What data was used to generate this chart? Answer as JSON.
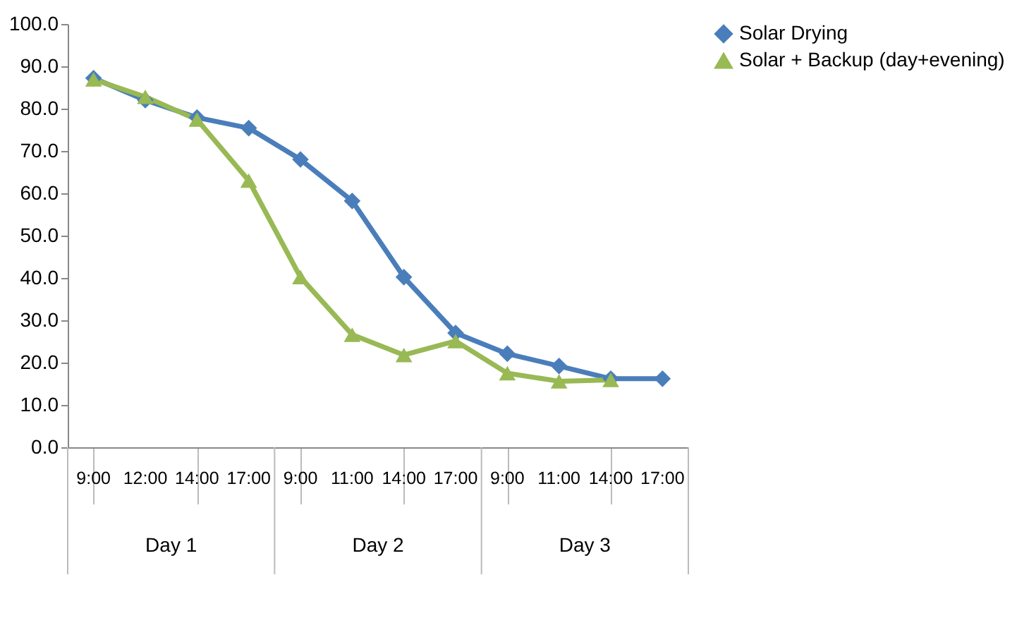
{
  "chart_data": {
    "type": "line",
    "categories": [
      "9:00",
      "12:00",
      "14:00",
      "17:00",
      "9:00",
      "11:00",
      "14:00",
      "17:00",
      "9:00",
      "11:00",
      "14:00",
      "17:00"
    ],
    "series": [
      {
        "name": "Solar Drying",
        "color": "#4a7ebb",
        "marker": "diamond",
        "values": [
          87.2,
          82.0,
          77.9,
          75.4,
          68.0,
          58.2,
          40.2,
          27.0,
          22.1,
          19.2,
          16.2,
          16.2
        ]
      },
      {
        "name": "Solar + Backup (day+evening)",
        "color": "#98b954",
        "marker": "triangle",
        "values": [
          86.9,
          82.8,
          77.4,
          63.0,
          40.2,
          26.6,
          21.8,
          25.1,
          17.5,
          15.6,
          15.9,
          null
        ]
      }
    ],
    "ylim": [
      0,
      100
    ],
    "yticks": [
      {
        "value": 0,
        "label": "0.0"
      },
      {
        "value": 10,
        "label": "10.0"
      },
      {
        "value": 20,
        "label": "20.0"
      },
      {
        "value": 30,
        "label": "30.0"
      },
      {
        "value": 40,
        "label": "40.0"
      },
      {
        "value": 50,
        "label": "50.0"
      },
      {
        "value": 60,
        "label": "60.0"
      },
      {
        "value": 70,
        "label": "70.0"
      },
      {
        "value": 80,
        "label": "80.0"
      },
      {
        "value": 90,
        "label": "90.0"
      },
      {
        "value": 100,
        "label": "100.0"
      }
    ],
    "annotations": [
      "Day 1",
      "Day 2",
      "Day 3"
    ],
    "grid": false,
    "legend": "right"
  }
}
